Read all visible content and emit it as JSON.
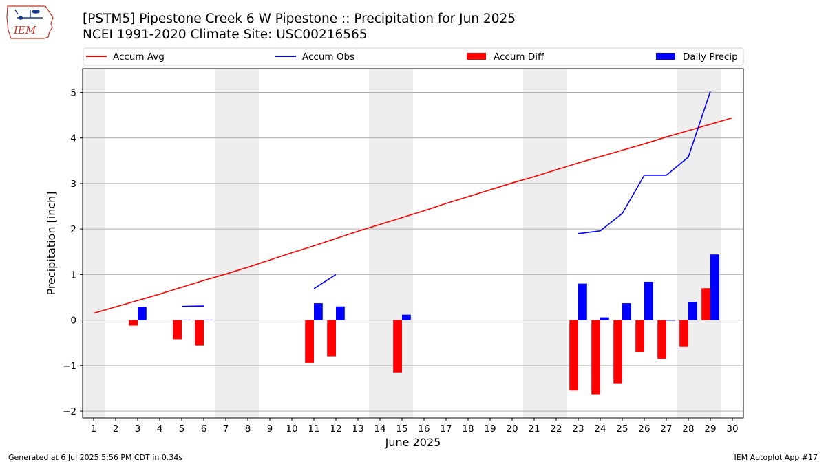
{
  "header": {
    "title_line1": "[PSTM5] Pipestone Creek 6 W Pipestone :: Precipitation for Jun 2025",
    "title_line2": "NCEI 1991-2020 Climate Site: USC00216565",
    "logo_text": "IEM"
  },
  "footer": {
    "generated": "Generated at 6 Jul 2025 5:56 PM CDT in 0.34s",
    "app": "IEM Autoplot App #17"
  },
  "colors": {
    "accum_avg": "#ff0000",
    "accum_obs": "#0000ff",
    "accum_diff": "#ff0000",
    "daily_precip": "#0000ff",
    "weekend_band": "#eeeeee",
    "grid": "#b0b0b0"
  },
  "chart_data": {
    "type": "bar",
    "xlabel": "June 2025",
    "ylabel": "Precipitation [inch]",
    "xlim": [
      0.5,
      30.5
    ],
    "ylim": [
      -2.15,
      5.52
    ],
    "x_ticks": [
      1,
      2,
      3,
      4,
      5,
      6,
      7,
      8,
      9,
      10,
      11,
      12,
      13,
      14,
      15,
      16,
      17,
      18,
      19,
      20,
      21,
      22,
      23,
      24,
      25,
      26,
      27,
      28,
      29,
      30
    ],
    "y_ticks": [
      -2,
      -1,
      0,
      1,
      2,
      3,
      4,
      5
    ],
    "y_tick_labels": [
      "−2",
      "−1",
      "0",
      "1",
      "2",
      "3",
      "4",
      "5"
    ],
    "grid": "horizontal",
    "legend": [
      "Accum Avg",
      "Accum Obs",
      "Accum Diff",
      "Daily Precip"
    ],
    "legend_placement": "top",
    "weekend_days": [
      1,
      7,
      8,
      14,
      15,
      21,
      22,
      28,
      29
    ],
    "series": [
      {
        "name": "Accum Avg",
        "kind": "line",
        "days": [
          1,
          2,
          3,
          4,
          5,
          6,
          7,
          8,
          9,
          10,
          11,
          12,
          13,
          14,
          15,
          16,
          17,
          18,
          19,
          20,
          21,
          22,
          23,
          24,
          25,
          26,
          27,
          28,
          29,
          30
        ],
        "values": [
          0.15,
          0.29,
          0.43,
          0.57,
          0.72,
          0.87,
          1.01,
          1.16,
          1.32,
          1.48,
          1.63,
          1.79,
          1.95,
          2.1,
          2.25,
          2.4,
          2.56,
          2.71,
          2.86,
          3.01,
          3.15,
          3.3,
          3.45,
          3.59,
          3.73,
          3.87,
          4.02,
          4.16,
          4.3,
          4.44
        ]
      },
      {
        "name": "Accum Obs",
        "kind": "line",
        "days": [
          1,
          2,
          3,
          4,
          5,
          6,
          7,
          8,
          9,
          10,
          11,
          12,
          13,
          14,
          15,
          16,
          17,
          18,
          19,
          20,
          21,
          22,
          23,
          24,
          25,
          26,
          27,
          28,
          29,
          30
        ],
        "values": [
          null,
          null,
          null,
          null,
          0.3,
          0.31,
          null,
          null,
          null,
          null,
          0.69,
          1.0,
          null,
          null,
          null,
          null,
          null,
          null,
          null,
          null,
          null,
          null,
          1.9,
          1.96,
          2.34,
          3.18,
          3.18,
          3.58,
          5.02,
          null
        ]
      },
      {
        "name": "Accum Diff",
        "kind": "bar",
        "days": [
          3,
          5,
          6,
          11,
          12,
          15,
          23,
          24,
          25,
          26,
          27,
          28,
          29
        ],
        "values": [
          -0.12,
          -0.42,
          -0.56,
          -0.94,
          -0.8,
          -1.15,
          -1.55,
          -1.63,
          -1.39,
          -0.7,
          -0.85,
          -0.59,
          0.7
        ]
      },
      {
        "name": "Daily Precip",
        "kind": "bar",
        "days": [
          3,
          5,
          6,
          11,
          12,
          15,
          23,
          24,
          25,
          26,
          27,
          28,
          29
        ],
        "values": [
          0.29,
          0.01,
          0.01,
          0.37,
          0.3,
          0.12,
          0.8,
          0.06,
          0.37,
          0.84,
          0.0,
          0.4,
          1.44
        ]
      }
    ]
  }
}
